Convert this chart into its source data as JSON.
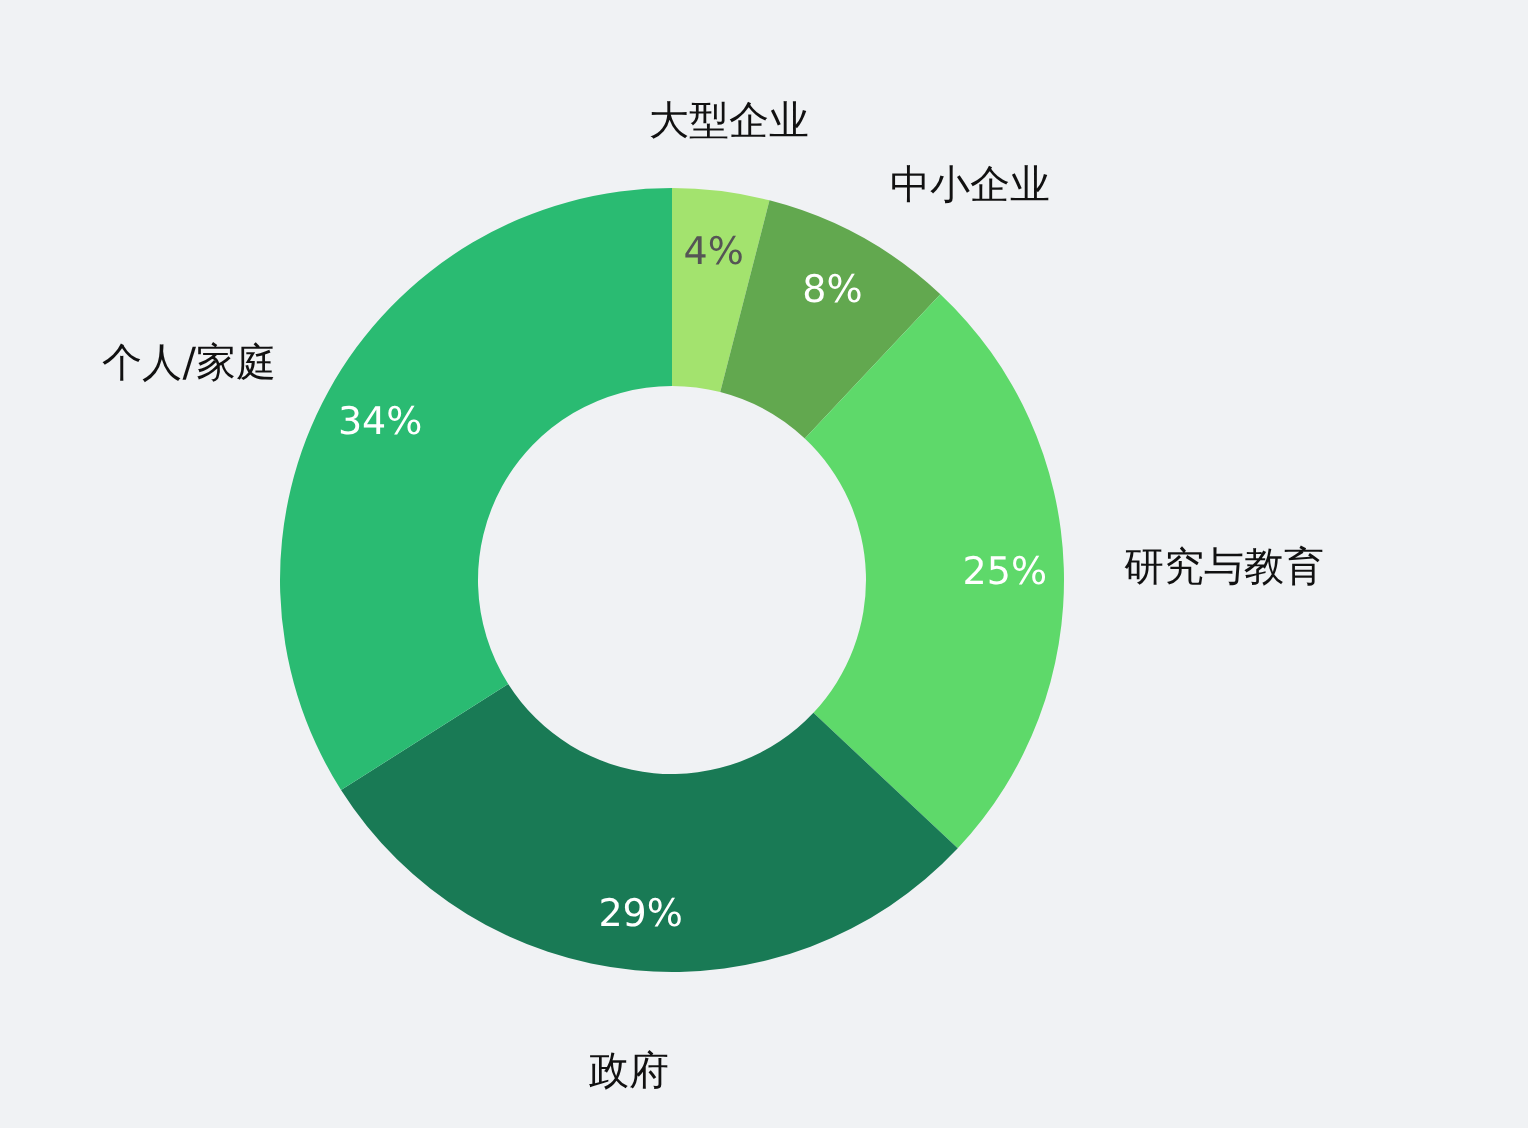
{
  "chart_data": {
    "type": "donut",
    "categories": [
      "大型企业",
      "中小企业",
      "研究与教育",
      "政府",
      "个人/家庭"
    ],
    "values": [
      4,
      8,
      25,
      29,
      34
    ],
    "colors": [
      "#a3e36e",
      "#62a84f",
      "#5ed96a",
      "#197a55",
      "#2abb72"
    ],
    "value_labels": [
      "4%",
      "8%",
      "25%",
      "29%",
      "34%"
    ]
  }
}
